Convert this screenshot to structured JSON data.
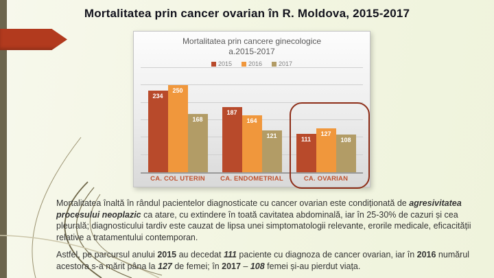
{
  "slide": {
    "title": "Mortalitatea prin cancer ovarian în R. Moldova, 2015-2017"
  },
  "chart_data": {
    "type": "bar",
    "title_line1": "Mortalitatea prin cancere ginecologice",
    "title_line2": "a.2015-2017",
    "categories": [
      "CA. COL UTERIN",
      "CA. ENDOMETRIAL",
      "CA. OVARIAN"
    ],
    "series": [
      {
        "name": "2015",
        "color": "#b84a2b",
        "values": [
          234,
          187,
          111
        ]
      },
      {
        "name": "2016",
        "color": "#f0973c",
        "values": [
          250,
          164,
          127
        ]
      },
      {
        "name": "2017",
        "color": "#b29c66",
        "values": [
          168,
          121,
          108
        ]
      }
    ],
    "ylim": [
      0,
      300
    ],
    "gridline_step": 50,
    "grid": true,
    "legend_position": "top",
    "value_labels": "inside-top",
    "highlight_category": "CA. OVARIAN",
    "highlight_color": "#8d2d17",
    "category_label_color": "#bf4f2c"
  },
  "paragraphs": [
    {
      "segments": [
        {
          "text": "Mortalitatea înaltă în rândul pacientelor diagnosticate cu cancer ovarian este condiționată de ",
          "style": "normal"
        },
        {
          "text": "agresivitatea procesului neoplazic",
          "style": "bold-italic"
        },
        {
          "text": " ca atare, cu extindere în toată cavitatea abdominală, iar în 25-30% de cazuri  și cea pleurală; diagnosticului tardiv este cauzat de lipsa  unei simptomatologii relevante, erorile medicale, eficacității relative a tratamentului contemporan.",
          "style": "normal"
        }
      ]
    },
    {
      "segments": [
        {
          "text": "Astfel, pe parcursul anului ",
          "style": "normal"
        },
        {
          "text": "2015",
          "style": "bold"
        },
        {
          "text": " au decedat ",
          "style": "normal"
        },
        {
          "text": "111",
          "style": "bold-italic"
        },
        {
          "text": " paciente cu diagnoza de cancer ovarian, iar în ",
          "style": "normal"
        },
        {
          "text": "2016",
          "style": "bold"
        },
        {
          "text": " numărul acestora s-a mărit pâna la ",
          "style": "normal"
        },
        {
          "text": "127",
          "style": "bold-italic"
        },
        {
          "text": " de femei; în ",
          "style": "normal"
        },
        {
          "text": "2017",
          "style": "bold"
        },
        {
          "text": " – ",
          "style": "normal"
        },
        {
          "text": "108",
          "style": "bold-italic"
        },
        {
          "text": " femei și-au pierdut viața.",
          "style": "normal"
        }
      ]
    }
  ]
}
